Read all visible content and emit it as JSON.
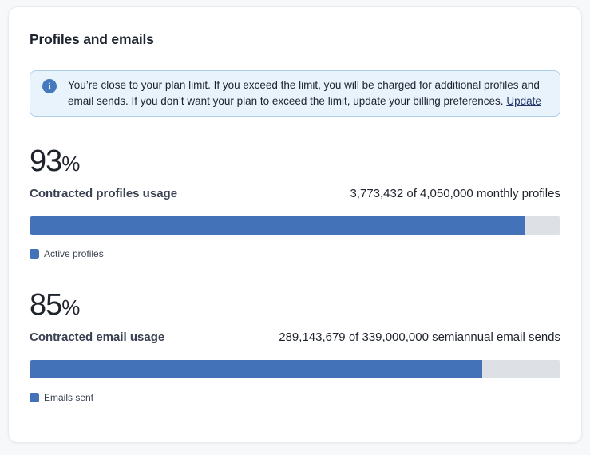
{
  "card": {
    "title": "Profiles and emails",
    "alert": {
      "message": "You’re close to your plan limit. If you exceed the limit, you will be charged for additional profiles and email sends. If you don’t want your plan to exceed the limit, update your billing preferences.",
      "link_label": "Update"
    },
    "meters": [
      {
        "percent": "93",
        "percent_sign": "%",
        "label": "Contracted profiles usage",
        "usage_text": "3,773,432 of 4,050,000 monthly profiles",
        "used": 3773432,
        "limit": 4050000,
        "fill_width": "93.2%",
        "legend_label": "Active profiles"
      },
      {
        "percent": "85",
        "percent_sign": "%",
        "label": "Contracted email usage",
        "usage_text": "289,143,679 of 339,000,000 semiannual email sends",
        "used": 289143679,
        "limit": 339000000,
        "fill_width": "85.3%",
        "legend_label": "Emails sent"
      }
    ],
    "colors": {
      "bar_fill": "#4472b8",
      "bar_track": "#dde0e4",
      "alert_bg": "#e9f3fb",
      "alert_border": "#abceeb",
      "info_icon_bg": "#4579be",
      "link": "#24356b"
    }
  }
}
